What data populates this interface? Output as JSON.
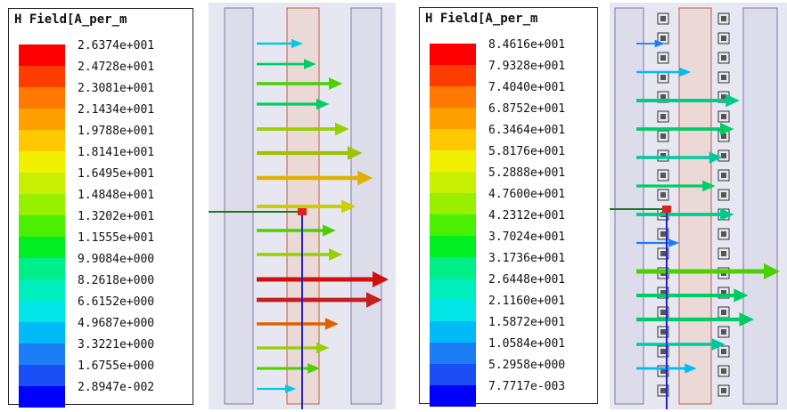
{
  "legend_left": {
    "title": "H Field[A_per_m",
    "colors": [
      "#ff0000",
      "#ff3c00",
      "#ff7800",
      "#ffa000",
      "#ffc800",
      "#f0f000",
      "#c8f000",
      "#96f000",
      "#4bf000",
      "#00ee22",
      "#00ee88",
      "#00eebb",
      "#00e6e6",
      "#00bbf5",
      "#1b7ef5",
      "#1b4ef5",
      "#0000ff"
    ],
    "values": [
      "2.6374e+001",
      "2.4728e+001",
      "2.3081e+001",
      "2.1434e+001",
      "1.9788e+001",
      "1.8141e+001",
      "1.6495e+001",
      "1.4848e+001",
      "1.3202e+001",
      "1.1555e+001",
      "9.9084e+000",
      "8.2618e+000",
      "6.6152e+000",
      "4.9687e+000",
      "3.3221e+000",
      "1.6755e+000",
      "2.8947e-002"
    ]
  },
  "legend_right": {
    "title": "H Field[A_per_m",
    "colors": [
      "#ff0000",
      "#ff3c00",
      "#ff7800",
      "#ffa000",
      "#ffc800",
      "#f0f000",
      "#c8f000",
      "#96f000",
      "#4bf000",
      "#00ee22",
      "#00ee88",
      "#00eebb",
      "#00e6e6",
      "#00bbf5",
      "#1b7ef5",
      "#1b4ef5",
      "#0000ff"
    ],
    "values": [
      "8.4616e+001",
      "7.9328e+001",
      "7.4040e+001",
      "6.8752e+001",
      "6.3464e+001",
      "5.8176e+001",
      "5.2888e+001",
      "4.7600e+001",
      "4.2312e+001",
      "3.7024e+001",
      "3.1736e+001",
      "2.6448e+001",
      "2.1160e+001",
      "1.5872e+001",
      "1.0584e+001",
      "5.2958e+000",
      "7.7717e-003"
    ]
  },
  "field_left": {
    "arrows": [
      {
        "y": 0.1,
        "len": 0.35,
        "c": "#00c8e0"
      },
      {
        "y": 0.15,
        "len": 0.45,
        "c": "#00cc66"
      },
      {
        "y": 0.2,
        "len": 0.65,
        "c": "#4bd000"
      },
      {
        "y": 0.25,
        "len": 0.55,
        "c": "#00cc66"
      },
      {
        "y": 0.31,
        "len": 0.7,
        "c": "#96d000"
      },
      {
        "y": 0.37,
        "len": 0.8,
        "c": "#a0c000"
      },
      {
        "y": 0.43,
        "len": 0.88,
        "c": "#e0b000"
      },
      {
        "y": 0.5,
        "len": 0.75,
        "c": "#c8d000"
      },
      {
        "y": 0.56,
        "len": 0.6,
        "c": "#4bd000"
      },
      {
        "y": 0.62,
        "len": 0.65,
        "c": "#96d000"
      },
      {
        "y": 0.68,
        "len": 1.0,
        "c": "#d01010"
      },
      {
        "y": 0.73,
        "len": 0.95,
        "c": "#c02020"
      },
      {
        "y": 0.79,
        "len": 0.62,
        "c": "#e06000"
      },
      {
        "y": 0.85,
        "len": 0.55,
        "c": "#96d000"
      },
      {
        "y": 0.9,
        "len": 0.48,
        "c": "#4bd000"
      },
      {
        "y": 0.95,
        "len": 0.3,
        "c": "#00c8e0"
      }
    ]
  },
  "field_right": {
    "arrows": [
      {
        "y": 0.1,
        "len": 0.2,
        "c": "#1b7ef5"
      },
      {
        "y": 0.17,
        "len": 0.38,
        "c": "#00bbf5"
      },
      {
        "y": 0.24,
        "len": 0.72,
        "c": "#00cc88"
      },
      {
        "y": 0.31,
        "len": 0.68,
        "c": "#00cc66"
      },
      {
        "y": 0.38,
        "len": 0.6,
        "c": "#00c8a0"
      },
      {
        "y": 0.45,
        "len": 0.55,
        "c": "#00cc66"
      },
      {
        "y": 0.52,
        "len": 0.68,
        "c": "#00cc88"
      },
      {
        "y": 0.59,
        "len": 0.3,
        "c": "#1b7ef5"
      },
      {
        "y": 0.66,
        "len": 1.0,
        "c": "#4bd000"
      },
      {
        "y": 0.72,
        "len": 0.78,
        "c": "#00cc66"
      },
      {
        "y": 0.78,
        "len": 0.82,
        "c": "#00cc66"
      },
      {
        "y": 0.84,
        "len": 0.62,
        "c": "#00c8a0"
      },
      {
        "y": 0.9,
        "len": 0.42,
        "c": "#00bbf5"
      }
    ]
  }
}
